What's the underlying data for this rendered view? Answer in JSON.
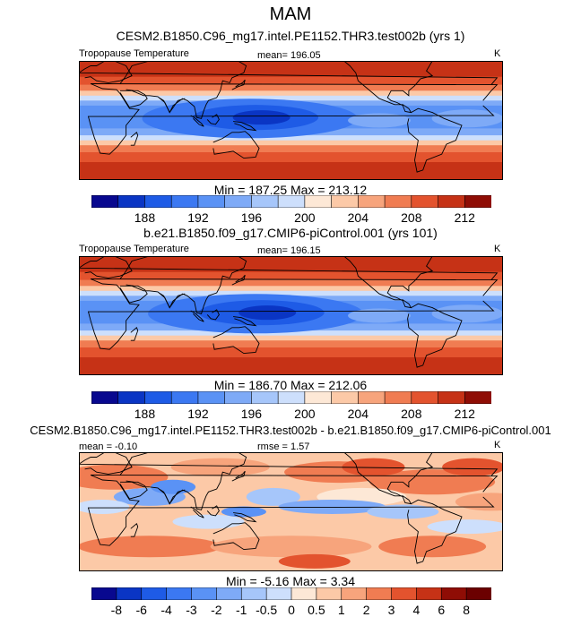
{
  "title": "MAM",
  "chart_data": [
    {
      "type": "heatmap",
      "title": "CESM2.B1850.C96_mg17.intel.PE1152.THR3.test002b (yrs 1)",
      "variable": "Tropopause Temperature",
      "units": "K",
      "mean_label": "mean= 196.05",
      "mean": 196.05,
      "min": 187.25,
      "max": 213.12,
      "minmax_label": "Min = 187.25 Max = 213.12",
      "colorbar_ticks": [
        "188",
        "192",
        "196",
        "200",
        "204",
        "208",
        "212"
      ],
      "colorbar_levels": [
        186,
        188,
        190,
        192,
        194,
        196,
        198,
        200,
        202,
        204,
        206,
        208,
        210,
        212,
        214
      ],
      "colorbar_colors": [
        "#08088f",
        "#0a35c4",
        "#1e5be6",
        "#3b78f2",
        "#5a92f5",
        "#7eaaf7",
        "#a6c6fa",
        "#cddffc",
        "#fde8d6",
        "#fcc9a7",
        "#f7a47c",
        "#f07c52",
        "#e3532e",
        "#c63216",
        "#8f0d05"
      ],
      "pattern": "zonal bands: warm (red) in high latitudes, cold (blue) tropical belt, coldest over western Pacific"
    },
    {
      "type": "heatmap",
      "title": "b.e21.B1850.f09_g17.CMIP6-piControl.001 (yrs 101)",
      "variable": "Tropopause Temperature",
      "units": "K",
      "mean_label": "mean= 196.15",
      "mean": 196.15,
      "min": 186.7,
      "max": 212.06,
      "minmax_label": "Min = 186.70 Max = 212.06",
      "colorbar_ticks": [
        "188",
        "192",
        "196",
        "200",
        "204",
        "208",
        "212"
      ],
      "colorbar_levels": [
        186,
        188,
        190,
        192,
        194,
        196,
        198,
        200,
        202,
        204,
        206,
        208,
        210,
        212,
        214
      ],
      "colorbar_colors": [
        "#08088f",
        "#0a35c4",
        "#1e5be6",
        "#3b78f2",
        "#5a92f5",
        "#7eaaf7",
        "#a6c6fa",
        "#cddffc",
        "#fde8d6",
        "#fcc9a7",
        "#f7a47c",
        "#f07c52",
        "#e3532e",
        "#c63216",
        "#8f0d05"
      ],
      "pattern": "zonal bands similar to panel 1"
    },
    {
      "type": "heatmap",
      "title": "CESM2.B1850.C96_mg17.intel.PE1152.THR3.test002b - b.e21.B1850.f09_g17.CMIP6-piControl.001",
      "units": "K",
      "mean_label": "mean = -0.10",
      "mean": -0.1,
      "rmse_label": "rmse =  1.57",
      "rmse": 1.57,
      "min": -5.16,
      "max": 3.34,
      "minmax_label": "Min =  -5.16 Max =   3.34",
      "colorbar_ticks": [
        "-8",
        "-6",
        "-4",
        "-3",
        "-2",
        "-1",
        "-0.5",
        "0",
        "0.5",
        "1",
        "2",
        "3",
        "4",
        "6",
        "8"
      ],
      "colorbar_colors": [
        "#08088f",
        "#0a35c4",
        "#1e5be6",
        "#3b78f2",
        "#5a92f5",
        "#7eaaf7",
        "#a6c6fa",
        "#cddffc",
        "#fde8d6",
        "#fcc9a7",
        "#f7a47c",
        "#f07c52",
        "#e3532e",
        "#c63216",
        "#8f0d05",
        "#6b0000"
      ],
      "pattern": "mostly small positive (light orange) differences, blue negative patches in tropics near Indian Ocean and eastern Pacific"
    }
  ]
}
